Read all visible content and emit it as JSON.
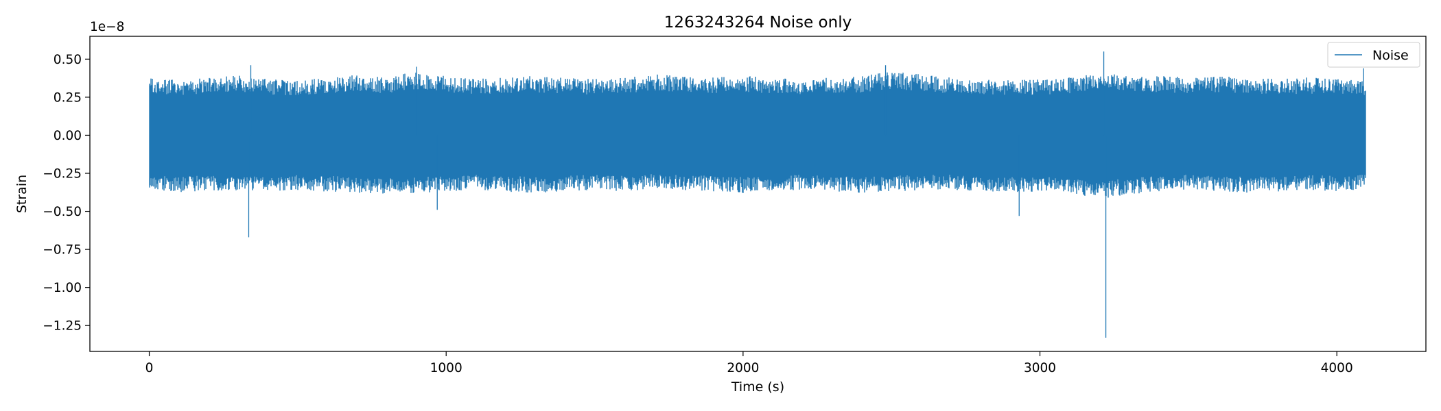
{
  "chart_data": {
    "type": "line",
    "title": "1263243264 Noise only",
    "xlabel": "Time (s)",
    "ylabel": "Strain",
    "y_offset_label": "1e−8",
    "y_scale": 1e-08,
    "xlim": [
      -200,
      4300
    ],
    "ylim": [
      -1.42,
      0.65
    ],
    "x_ticks": [
      0,
      1000,
      2000,
      3000,
      4000
    ],
    "x_tick_labels": [
      "0",
      "1000",
      "2000",
      "3000",
      "4000"
    ],
    "y_ticks": [
      0.5,
      0.25,
      0.0,
      -0.25,
      -0.5,
      -0.75,
      -1.0,
      -1.25
    ],
    "y_tick_labels": [
      "0.50",
      "0.25",
      "0.00",
      "−0.25",
      "−0.50",
      "−0.75",
      "−1.00",
      "−1.25"
    ],
    "grid": false,
    "legend_position": "top-right",
    "series": [
      {
        "name": "Noise",
        "color": "#1f77b4",
        "x_range": [
          0,
          4096
        ],
        "envelope": {
          "x": [
            0,
            100,
            200,
            300,
            400,
            500,
            600,
            700,
            800,
            900,
            1000,
            1100,
            1200,
            1300,
            1400,
            1500,
            1600,
            1700,
            1800,
            1900,
            2000,
            2100,
            2200,
            2300,
            2400,
            2500,
            2600,
            2700,
            2800,
            2900,
            3000,
            3100,
            3200,
            3300,
            3400,
            3500,
            3600,
            3700,
            3800,
            3900,
            4000,
            4096
          ],
          "upper": [
            0.38,
            0.36,
            0.38,
            0.4,
            0.37,
            0.36,
            0.38,
            0.4,
            0.38,
            0.42,
            0.39,
            0.37,
            0.38,
            0.39,
            0.38,
            0.37,
            0.38,
            0.4,
            0.39,
            0.38,
            0.39,
            0.38,
            0.37,
            0.38,
            0.39,
            0.42,
            0.4,
            0.38,
            0.37,
            0.36,
            0.37,
            0.38,
            0.42,
            0.4,
            0.39,
            0.38,
            0.39,
            0.38,
            0.37,
            0.38,
            0.37,
            0.36
          ],
          "lower": [
            -0.36,
            -0.38,
            -0.36,
            -0.38,
            -0.37,
            -0.36,
            -0.37,
            -0.38,
            -0.39,
            -0.38,
            -0.37,
            -0.36,
            -0.37,
            -0.38,
            -0.37,
            -0.36,
            -0.37,
            -0.35,
            -0.36,
            -0.37,
            -0.38,
            -0.37,
            -0.36,
            -0.37,
            -0.38,
            -0.37,
            -0.36,
            -0.36,
            -0.37,
            -0.38,
            -0.37,
            -0.38,
            -0.42,
            -0.39,
            -0.37,
            -0.36,
            -0.37,
            -0.38,
            -0.37,
            -0.36,
            -0.37,
            -0.36
          ]
        },
        "spikes": [
          {
            "x": 3,
            "y": -0.3
          },
          {
            "x": 335,
            "y": -0.67
          },
          {
            "x": 342,
            "y": 0.46
          },
          {
            "x": 970,
            "y": -0.49
          },
          {
            "x": 900,
            "y": 0.45
          },
          {
            "x": 2480,
            "y": 0.46
          },
          {
            "x": 2930,
            "y": -0.53
          },
          {
            "x": 3215,
            "y": 0.55
          },
          {
            "x": 3222,
            "y": -1.33
          },
          {
            "x": 4090,
            "y": 0.44
          }
        ]
      }
    ]
  }
}
